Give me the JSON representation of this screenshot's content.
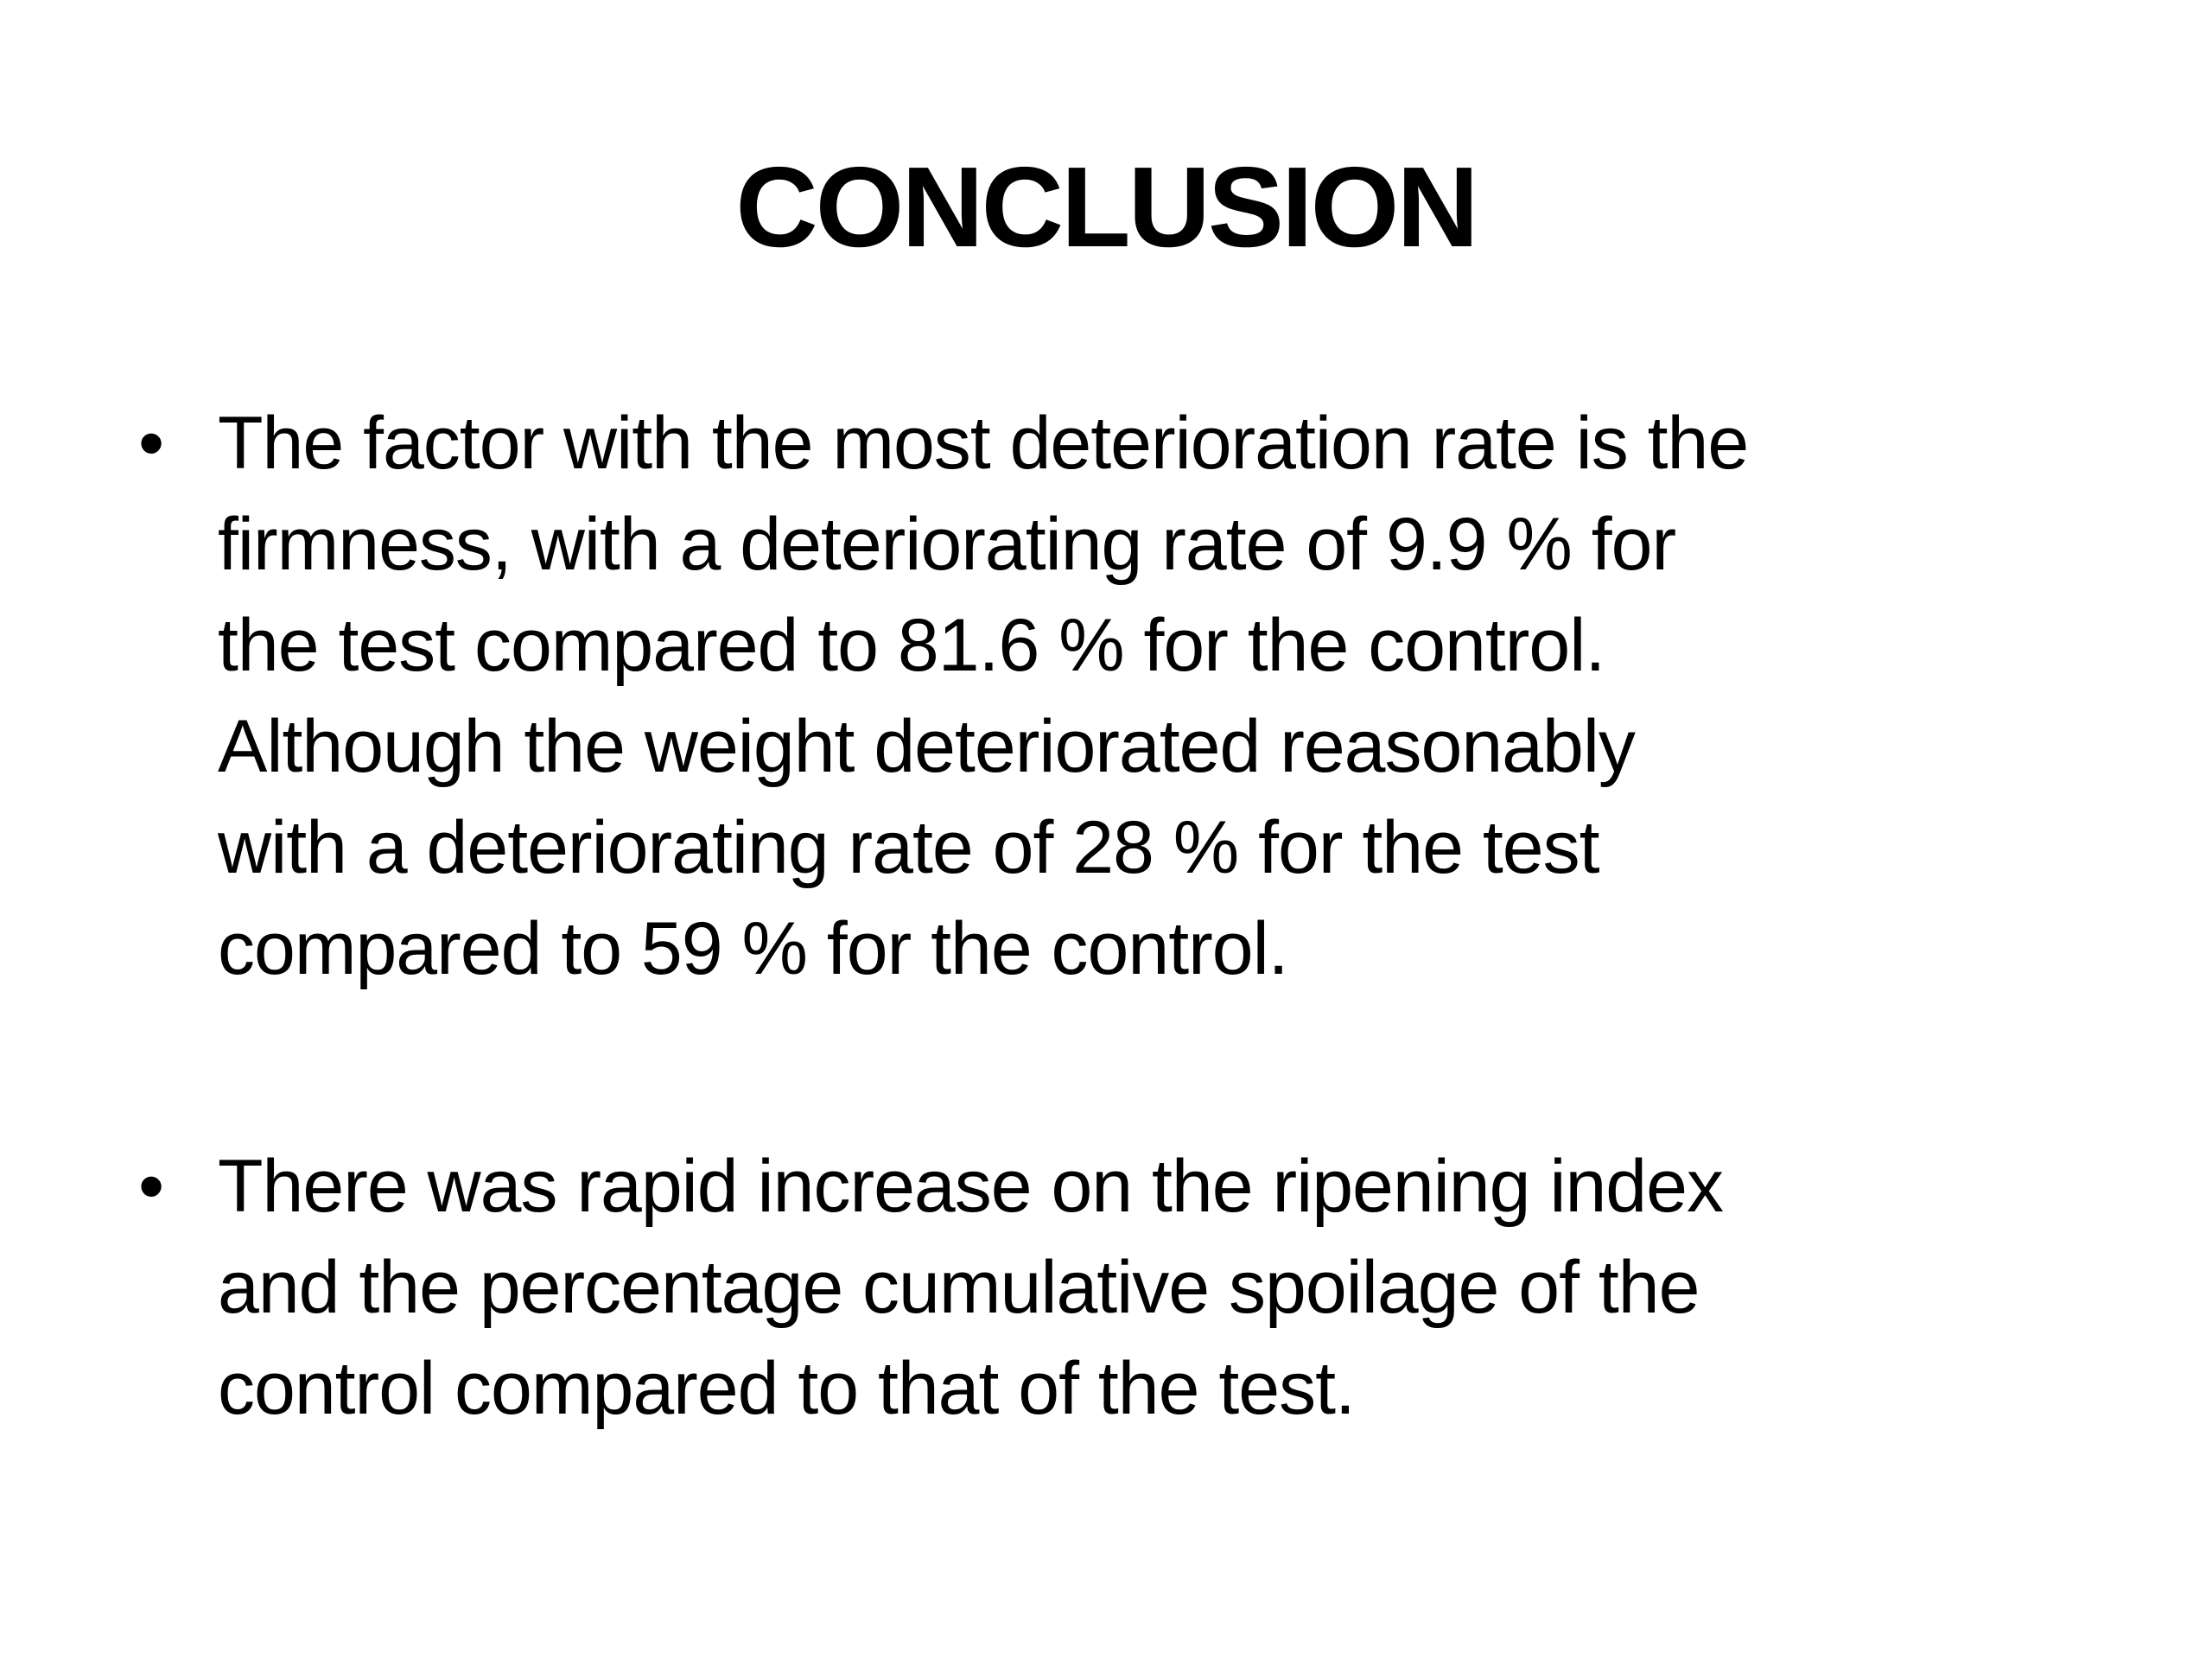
{
  "slide": {
    "title": "CONCLUSION",
    "bullets": [
      {
        "marker": "•",
        "lines": [
          "The factor with the most deterioration rate is the",
          "firmness, with a deteriorating rate of 9.9 % for",
          "the test compared to 81.6 % for the control.",
          "Although the weight deteriorated reasonably",
          "with a deteriorating rate of 28 % for the test",
          "compared to 59 % for the control."
        ]
      },
      {
        "marker": "•",
        "lines": [
          "There was rapid increase on the ripening index",
          "and the percentage cumulative spoilage of the",
          "control compared to that of the test."
        ]
      }
    ]
  }
}
